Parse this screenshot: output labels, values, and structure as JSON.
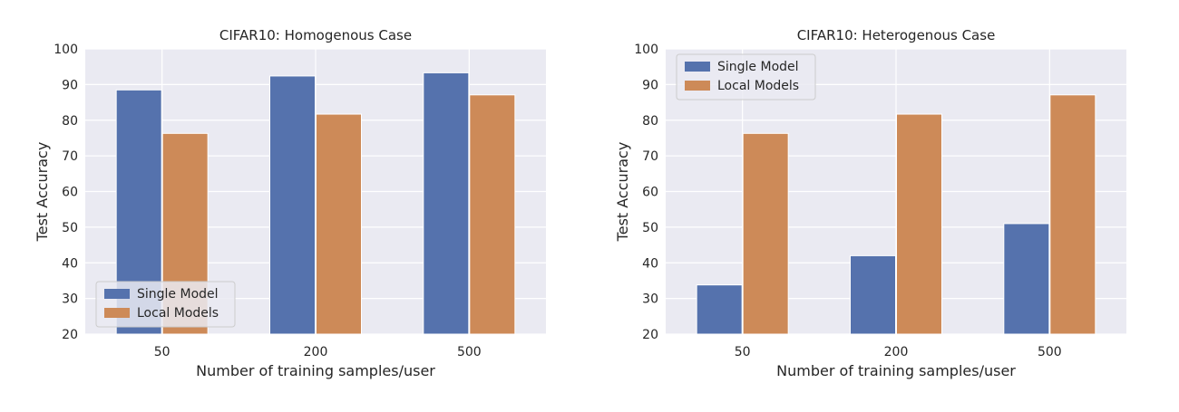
{
  "style": {
    "panel_bg": "#eaeaf2",
    "grid": "#ffffff",
    "text": "#262626",
    "legend_bg": "#eaeaf2",
    "legend_border": "#cccccc"
  },
  "chart_data": [
    {
      "type": "bar",
      "title": "CIFAR10: Homogenous Case",
      "xlabel": "Number of training samples/user",
      "ylabel": "Test Accuracy",
      "categories": [
        "50",
        "200",
        "500"
      ],
      "ylim": [
        20,
        100
      ],
      "yticks": [
        20,
        30,
        40,
        50,
        60,
        70,
        80,
        90,
        100
      ],
      "ytick_labels": [
        "20",
        "30",
        "40",
        "50",
        "60",
        "70",
        "80",
        "90",
        "100"
      ],
      "grid": true,
      "legend_position": "lower-left",
      "series": [
        {
          "name": "Single Model",
          "color": "#5572ad",
          "values": [
            88.5,
            92.4,
            93.3
          ]
        },
        {
          "name": "Local Models",
          "color": "#cd8a58",
          "values": [
            76.3,
            81.7,
            87.1
          ]
        }
      ]
    },
    {
      "type": "bar",
      "title": "CIFAR10: Heterogenous Case",
      "xlabel": "Number of training samples/user",
      "ylabel": "Test Accuracy",
      "categories": [
        "50",
        "200",
        "500"
      ],
      "ylim": [
        20,
        100
      ],
      "yticks": [
        20,
        30,
        40,
        50,
        60,
        70,
        80,
        90,
        100
      ],
      "ytick_labels": [
        "20",
        "30",
        "40",
        "50",
        "60",
        "70",
        "80",
        "90",
        "100"
      ],
      "grid": true,
      "legend_position": "upper-left",
      "series": [
        {
          "name": "Single Model",
          "color": "#5572ad",
          "values": [
            33.8,
            42.0,
            51.0
          ]
        },
        {
          "name": "Local Models",
          "color": "#cd8a58",
          "values": [
            76.3,
            81.7,
            87.1
          ]
        }
      ]
    }
  ]
}
